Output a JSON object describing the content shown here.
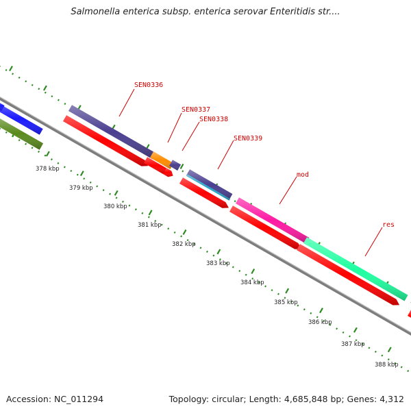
{
  "header": {
    "title": "Salmonella enterica subsp. enterica serovar Enteritidis str...."
  },
  "footer": {
    "accession": "Accession: NC_011294",
    "summary": "Topology: circular; Length: 4,685,848 bp; Genes: 4,312"
  },
  "map": {
    "ticks_kbp": [
      378,
      379,
      380,
      381,
      382,
      383,
      384,
      385,
      386,
      387,
      388
    ],
    "tick_unit": "kbp",
    "colors": {
      "backbone": "#8a8a8a",
      "forward_cds": "#ff0000",
      "navy": "#4a3f8f",
      "blue": "#1a1aff",
      "olive": "#5a8a1e",
      "orange": "#ff8c00",
      "magenta": "#ff1aa3",
      "teal": "#1fffa0",
      "ruler": "#2e8b22",
      "label": "#cc0000"
    },
    "gene_labels": [
      "SEN0336",
      "SEN0337",
      "SEN0338",
      "SEN0339",
      "mod",
      "res"
    ]
  }
}
